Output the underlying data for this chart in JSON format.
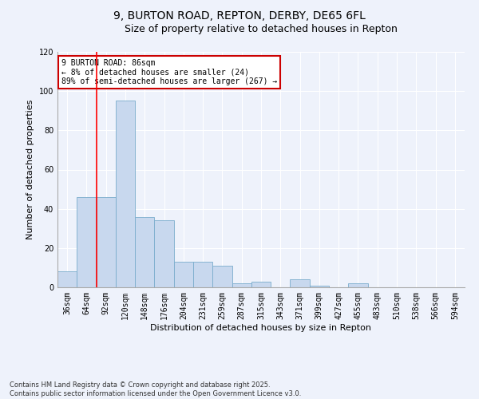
{
  "title_line1": "9, BURTON ROAD, REPTON, DERBY, DE65 6FL",
  "title_line2": "Size of property relative to detached houses in Repton",
  "xlabel": "Distribution of detached houses by size in Repton",
  "ylabel": "Number of detached properties",
  "categories": [
    "36sqm",
    "64sqm",
    "92sqm",
    "120sqm",
    "148sqm",
    "176sqm",
    "204sqm",
    "231sqm",
    "259sqm",
    "287sqm",
    "315sqm",
    "343sqm",
    "371sqm",
    "399sqm",
    "427sqm",
    "455sqm",
    "483sqm",
    "510sqm",
    "538sqm",
    "566sqm",
    "594sqm"
  ],
  "values": [
    8,
    46,
    46,
    95,
    36,
    34,
    13,
    13,
    11,
    2,
    3,
    0,
    4,
    1,
    0,
    2,
    0,
    0,
    0,
    0,
    0
  ],
  "bar_color": "#c8d8ee",
  "bar_edge_color": "#7aaccc",
  "red_line_x": 1.5,
  "ylim": [
    0,
    120
  ],
  "yticks": [
    0,
    20,
    40,
    60,
    80,
    100,
    120
  ],
  "annotation_text": "9 BURTON ROAD: 86sqm\n← 8% of detached houses are smaller (24)\n89% of semi-detached houses are larger (267) →",
  "annotation_box_color": "#ffffff",
  "annotation_border_color": "#cc0000",
  "footer_line1": "Contains HM Land Registry data © Crown copyright and database right 2025.",
  "footer_line2": "Contains public sector information licensed under the Open Government Licence v3.0.",
  "background_color": "#eef2fb",
  "grid_color": "#ffffff",
  "title_fontsize": 10,
  "subtitle_fontsize": 9,
  "axis_fontsize": 8,
  "tick_fontsize": 7,
  "footer_fontsize": 6
}
